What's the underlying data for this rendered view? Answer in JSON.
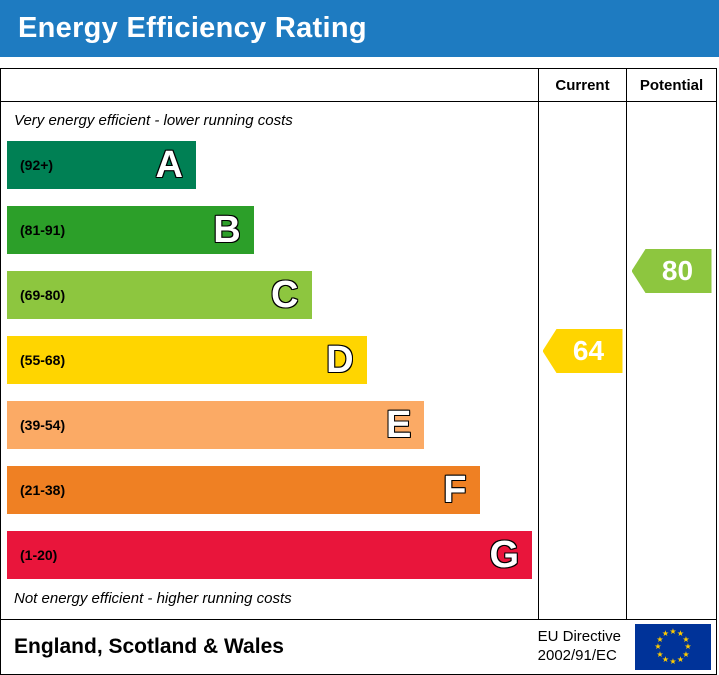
{
  "header": {
    "title": "Energy Efficiency Rating",
    "background_color": "#1e7bc1"
  },
  "chart_data": {
    "type": "bar",
    "orientation": "horizontal",
    "title": "Energy Efficiency Rating",
    "top_note": "Very energy efficient - lower running costs",
    "bottom_note": "Not energy efficient - higher running costs",
    "bands": [
      {
        "letter": "A",
        "range_label": "(92+)",
        "min": 92,
        "max": 100,
        "color": "#008054",
        "width_pct": 36
      },
      {
        "letter": "B",
        "range_label": "(81-91)",
        "min": 81,
        "max": 91,
        "color": "#2c9f29",
        "width_pct": 47
      },
      {
        "letter": "C",
        "range_label": "(69-80)",
        "min": 69,
        "max": 80,
        "color": "#8dc63f",
        "width_pct": 58
      },
      {
        "letter": "D",
        "range_label": "(55-68)",
        "min": 55,
        "max": 68,
        "color": "#ffd500",
        "width_pct": 68.5
      },
      {
        "letter": "E",
        "range_label": "(39-54)",
        "min": 39,
        "max": 54,
        "color": "#fbaa65",
        "width_pct": 79.5
      },
      {
        "letter": "F",
        "range_label": "(21-38)",
        "min": 21,
        "max": 38,
        "color": "#ef8023",
        "width_pct": 90
      },
      {
        "letter": "G",
        "range_label": "(1-20)",
        "min": 1,
        "max": 20,
        "color": "#e9153b",
        "width_pct": 100
      }
    ],
    "current": {
      "label": "Current",
      "value": 64,
      "band": "D",
      "color": "#ffd500"
    },
    "potential": {
      "label": "Potential",
      "value": 80,
      "band": "C",
      "color": "#8dc63f"
    }
  },
  "footer": {
    "region": "England, Scotland & Wales",
    "directive_line1": "EU Directive",
    "directive_line2": "2002/91/EC",
    "flag_background": "#003399",
    "flag_star_color": "#ffcc00"
  }
}
